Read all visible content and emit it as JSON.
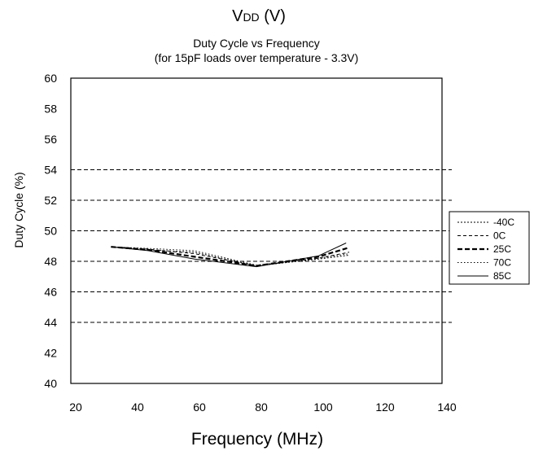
{
  "header": {
    "vdd_main": "V",
    "vdd_sub": "DD",
    "vdd_unit": " (V)"
  },
  "chart_data": {
    "type": "line",
    "title": "Duty Cycle vs Frequency",
    "subtitle": "(for 15pF loads over temperature - 3.3V)",
    "xlabel": "Frequency (MHz)",
    "ylabel": "Duty Cycle (%)",
    "xlim": [
      20,
      140
    ],
    "ylim": [
      40,
      60
    ],
    "x_ticks": [
      "20",
      "40",
      "60",
      "80",
      "100",
      "120",
      "140"
    ],
    "y_ticks": [
      "60",
      "58",
      "56",
      "54",
      "52",
      "50",
      "48",
      "46",
      "44",
      "42",
      "40"
    ],
    "gridlines": [
      54,
      52,
      50,
      48,
      46,
      44
    ],
    "grid": "horizontal dashed",
    "legend_position": "right",
    "series": [
      {
        "name": "-40C",
        "style": "dotted",
        "x": [
          33,
          45,
          60,
          80,
          100,
          110
        ],
        "y": [
          48.95,
          48.75,
          48.6,
          47.7,
          48.15,
          48.4
        ]
      },
      {
        "name": "0C",
        "style": "dashed",
        "x": [
          33,
          45,
          60,
          80,
          100,
          110
        ],
        "y": [
          48.95,
          48.8,
          48.5,
          47.7,
          48.2,
          48.6
        ]
      },
      {
        "name": "25C",
        "style": "bold-dashed",
        "x": [
          33,
          45,
          60,
          80,
          100,
          110
        ],
        "y": [
          48.95,
          48.75,
          48.3,
          47.7,
          48.3,
          48.9
        ]
      },
      {
        "name": "70C",
        "style": "fine-dotted",
        "x": [
          33,
          45,
          60,
          80,
          100,
          110
        ],
        "y": [
          48.95,
          48.85,
          48.7,
          47.75,
          48.2,
          48.5
        ]
      },
      {
        "name": "85C",
        "style": "solid",
        "x": [
          33,
          45,
          60,
          80,
          100,
          109
        ],
        "y": [
          48.95,
          48.7,
          48.15,
          47.65,
          48.35,
          49.2
        ]
      }
    ]
  }
}
